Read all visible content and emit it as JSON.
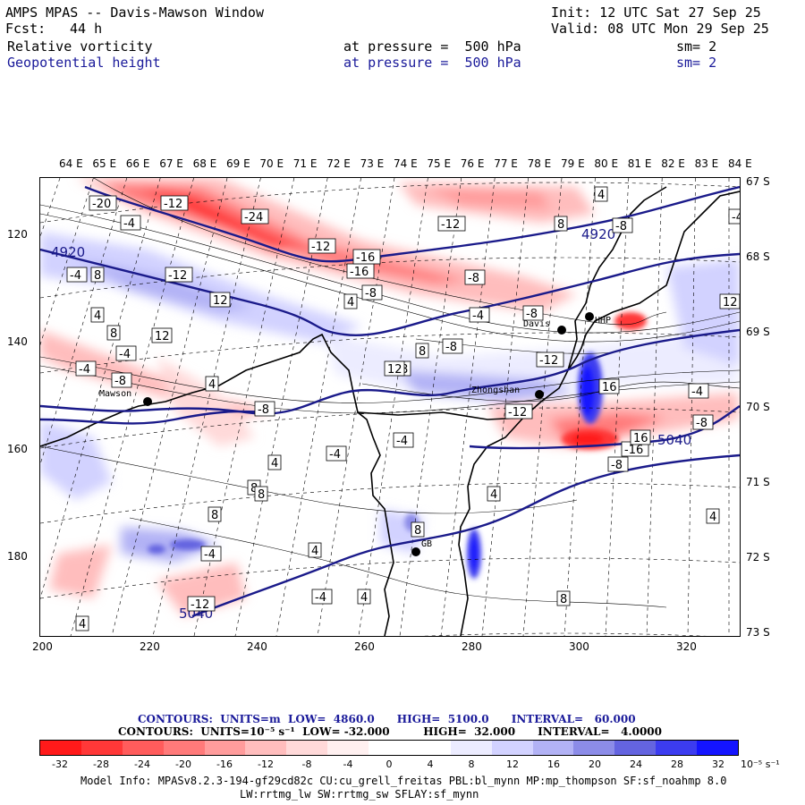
{
  "header": {
    "model": "AMPS MPAS -- Davis-Mawson Window",
    "fcst_label": "Fcst:",
    "fcst_value": "44 h",
    "init": "Init: 12 UTC Sat 27 Sep 25",
    "valid": "Valid: 08 UTC Mon 29 Sep 25",
    "field1": {
      "name": "Relative vorticity",
      "level": "at pressure =  500 hPa",
      "sm": "sm= 2"
    },
    "field2": {
      "name": "Geopotential height",
      "level": "at pressure =  500 hPa",
      "sm": "sm= 2"
    }
  },
  "axes": {
    "lon_labels": [
      "64 E",
      "65 E",
      "66 E",
      "67 E",
      "68 E",
      "69 E",
      "70 E",
      "71 E",
      "72 E",
      "73 E",
      "74 E",
      "75 E",
      "76 E",
      "77 E",
      "78 E",
      "79 E",
      "80 E",
      "81 E",
      "82 E",
      "83 E",
      "84 E"
    ],
    "lat_labels": [
      "67 S",
      "68 S",
      "69 S",
      "70 S",
      "71 S",
      "72 S",
      "73 S"
    ],
    "y_ticks": [
      "120",
      "140",
      "160",
      "180"
    ],
    "x_ticks": [
      "200",
      "220",
      "240",
      "260",
      "280",
      "300",
      "320"
    ]
  },
  "stations": [
    "Davis",
    "Mawson",
    "Zhongshan",
    "GB",
    "HHP"
  ],
  "height_labels": [
    "4920",
    "4920",
    "5040",
    "5040"
  ],
  "vorticity_labels": [
    "-20",
    "-12",
    "-4",
    "-24",
    "-12",
    "-16",
    "-4",
    "-12",
    "-16",
    "-8",
    "-12",
    "-8",
    "-4",
    "-8",
    "-12",
    "8",
    "12",
    "4",
    "8",
    "-4",
    "-8",
    "-4",
    "4",
    "12",
    "-8",
    "8",
    "-8",
    "16",
    "-8",
    "-12",
    "4",
    "8",
    "12",
    "-16",
    "-8",
    "16",
    "-8",
    "-4",
    "-4",
    "4",
    "8",
    "12",
    "-4",
    "-4",
    "8",
    "8",
    "4",
    "8",
    "8",
    "8",
    "-4",
    "-4",
    "4",
    "4",
    "4",
    "-12",
    "4",
    "4",
    "8"
  ],
  "contour_info": {
    "line1": "CONTOURS:  UNITS=m  LOW=  4860.0      HIGH=  5100.0      INTERVAL=   60.000",
    "line2": "CONTOURS:  UNITS=10⁻⁵ s⁻¹  LOW= -32.000         HIGH=  32.000      INTERVAL=   4.0000"
  },
  "colorbar": {
    "labels": [
      "-32",
      "-28",
      "-24",
      "-20",
      "-16",
      "-12",
      "-8",
      "-4",
      "0",
      "4",
      "8",
      "12",
      "16",
      "20",
      "24",
      "28",
      "32"
    ],
    "units": "10⁻⁵ s⁻¹",
    "colors": [
      "#ff1a1a",
      "#ff3838",
      "#ff5c5c",
      "#ff7a7a",
      "#ff9c9c",
      "#ffbdbd",
      "#ffd9d9",
      "#fff0f0",
      "#ffffff",
      "#ffffff",
      "#ececff",
      "#d2d2ff",
      "#b2b2f5",
      "#8c8ce8",
      "#6464e0",
      "#3c3cf0",
      "#1414ff"
    ]
  },
  "footer": {
    "line1": "Model Info: MPASv8.2.3-194-gf29cd82c CU:cu_grell_freitas PBL:bl_mynn MP:mp_thompson SF:sf_noahmp 8.0",
    "line2": "LW:rrtmg_lw SW:rrtmg_sw SFLAY:sf_mynn"
  }
}
